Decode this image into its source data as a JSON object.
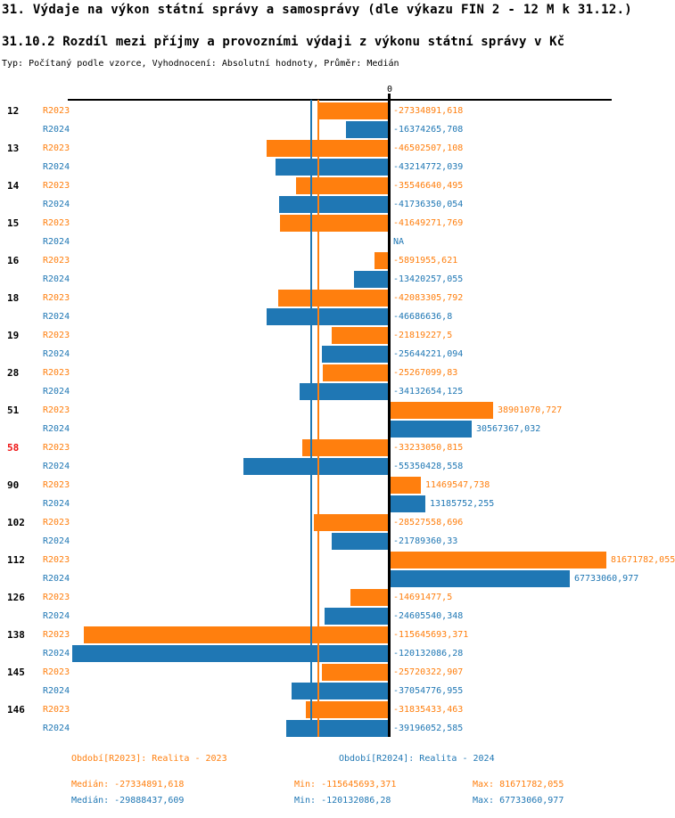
{
  "header": {
    "title": "31. Výdaje na výkon státní správy a samosprávy (dle výkazu FIN 2 - 12 M k 31.12.)",
    "subtitle": "31.10.2 Rozdíl mezi příjmy a provozními výdaji z výkonu státní správy v Kč",
    "meta": "Typ: Počítaný podle vzorce, Vyhodnocení: Absolutní hodnoty, Průměr: Medián"
  },
  "colors": {
    "r2023": "#ff7f0e",
    "r2024": "#1f77b4",
    "highlight_category": "#ee1111",
    "axis": "#000000"
  },
  "chart_data": {
    "type": "bar",
    "orientation": "horizontal",
    "zero_label": "0",
    "xlim": [
      -121830000,
      84040000
    ],
    "grid": false,
    "series": [
      {
        "name": "R2023",
        "color": "#ff7f0e",
        "median": -27334891.618
      },
      {
        "name": "R2024",
        "color": "#1f77b4",
        "median": -29888437.609
      }
    ],
    "categories": [
      "12",
      "13",
      "14",
      "15",
      "16",
      "18",
      "19",
      "28",
      "51",
      "58",
      "90",
      "102",
      "112",
      "126",
      "138",
      "145",
      "146"
    ],
    "rows": [
      {
        "category": "12",
        "highlight": false,
        "r2023": -27334891.618,
        "r2023_label": "-27334891,618",
        "r2024": -16374265.708,
        "r2024_label": "-16374265,708"
      },
      {
        "category": "13",
        "highlight": false,
        "r2023": -46502507.108,
        "r2023_label": "-46502507,108",
        "r2024": -43214772.039,
        "r2024_label": "-43214772,039"
      },
      {
        "category": "14",
        "highlight": false,
        "r2023": -35546640.495,
        "r2023_label": "-35546640,495",
        "r2024": -41736350.054,
        "r2024_label": "-41736350,054"
      },
      {
        "category": "15",
        "highlight": false,
        "r2023": -41649271.769,
        "r2023_label": "-41649271,769",
        "r2024": null,
        "r2024_label": "NA"
      },
      {
        "category": "16",
        "highlight": false,
        "r2023": -5891955.621,
        "r2023_label": "-5891955,621",
        "r2024": -13420257.055,
        "r2024_label": "-13420257,055"
      },
      {
        "category": "18",
        "highlight": false,
        "r2023": -42083305.792,
        "r2023_label": "-42083305,792",
        "r2024": -46686636.8,
        "r2024_label": "-46686636,8"
      },
      {
        "category": "19",
        "highlight": false,
        "r2023": -21819227.5,
        "r2023_label": "-21819227,5",
        "r2024": -25644221.094,
        "r2024_label": "-25644221,094"
      },
      {
        "category": "28",
        "highlight": false,
        "r2023": -25267099.83,
        "r2023_label": "-25267099,83",
        "r2024": -34132654.125,
        "r2024_label": "-34132654,125"
      },
      {
        "category": "51",
        "highlight": false,
        "r2023": 38901070.727,
        "r2023_label": "38901070,727",
        "r2024": 30567367.032,
        "r2024_label": "30567367,032"
      },
      {
        "category": "58",
        "highlight": true,
        "r2023": -33233050.815,
        "r2023_label": "-33233050,815",
        "r2024": -55350428.558,
        "r2024_label": "-55350428,558"
      },
      {
        "category": "90",
        "highlight": false,
        "r2023": 11469547.738,
        "r2023_label": "11469547,738",
        "r2024": 13185752.255,
        "r2024_label": "13185752,255"
      },
      {
        "category": "102",
        "highlight": false,
        "r2023": -28527558.696,
        "r2023_label": "-28527558,696",
        "r2024": -21789360.33,
        "r2024_label": "-21789360,33"
      },
      {
        "category": "112",
        "highlight": false,
        "r2023": 81671782.055,
        "r2023_label": "81671782,055",
        "r2024": 67733060.977,
        "r2024_label": "67733060,977"
      },
      {
        "category": "126",
        "highlight": false,
        "r2023": -14691477.5,
        "r2023_label": "-14691477,5",
        "r2024": -24605540.348,
        "r2024_label": "-24605540,348"
      },
      {
        "category": "138",
        "highlight": false,
        "r2023": -115645693.371,
        "r2023_label": "-115645693,371",
        "r2024": -120132086.28,
        "r2024_label": "-120132086,28"
      },
      {
        "category": "145",
        "highlight": false,
        "r2023": -25720322.907,
        "r2023_label": "-25720322,907",
        "r2024": -37054776.955,
        "r2024_label": "-37054776,955"
      },
      {
        "category": "146",
        "highlight": false,
        "r2023": -31835433.463,
        "r2023_label": "-31835433,463",
        "r2024": -39196052.585,
        "r2024_label": "-39196052,585"
      }
    ]
  },
  "footer": {
    "legend_2023": "Období[R2023]: Realita - 2023",
    "legend_2024": "Období[R2024]: Realita - 2024",
    "stats_2023": {
      "median": "Medián: -27334891,618",
      "min": "Min: -115645693,371",
      "max": "Max: 81671782,055"
    },
    "stats_2024": {
      "median": "Medián: -29888437,609",
      "min": "Min: -120132086,28",
      "max": "Max: 67733060,977"
    }
  }
}
